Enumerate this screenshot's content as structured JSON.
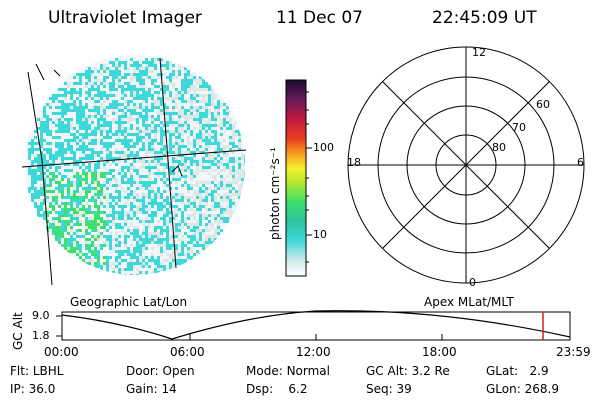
{
  "header": {
    "instrument": "Ultraviolet Imager",
    "date": "11 Dec 07",
    "time": "22:45:09 UT"
  },
  "colorbar": {
    "unit_label": "photon cm⁻²s⁻¹",
    "ticks": [
      "100",
      "10"
    ]
  },
  "polar_plot": {
    "clock_labels": [
      "12",
      "18",
      "6",
      "0"
    ],
    "lat_labels": [
      "60",
      "70",
      "80"
    ]
  },
  "image_panel": {
    "grid_label": "Geographic Lat/Lon",
    "polar_label": "Apex MLat/MLT"
  },
  "altitude_plot": {
    "ylabel": "GC Alt",
    "yticks": [
      "9.0",
      "1.8"
    ],
    "xticks": [
      "00:00",
      "06:00",
      "12:00",
      "18:00",
      "23:59"
    ]
  },
  "info": {
    "row1": [
      {
        "label": "Flt:",
        "value": "LBHL"
      },
      {
        "label": "Door:",
        "value": "Open"
      },
      {
        "label": "Mode:",
        "value": "Normal"
      },
      {
        "label": "GC Alt:",
        "value": "3.2 Re"
      },
      {
        "label": "GLat:",
        "value": "2.9"
      }
    ],
    "row2": [
      {
        "label": "IP:",
        "value": "36.0"
      },
      {
        "label": "Gain:",
        "value": "14"
      },
      {
        "label": "Dsp:",
        "value": "6.2"
      },
      {
        "label": "Seq:",
        "value": "39"
      },
      {
        "label": "GLon:",
        "value": "268.9"
      }
    ]
  },
  "colors": {
    "speckle_light": "#dfe6e6",
    "speckle_cyan": "#3fd8d8",
    "speckle_green": "#3ee06a",
    "marker_red": "#d02020"
  }
}
